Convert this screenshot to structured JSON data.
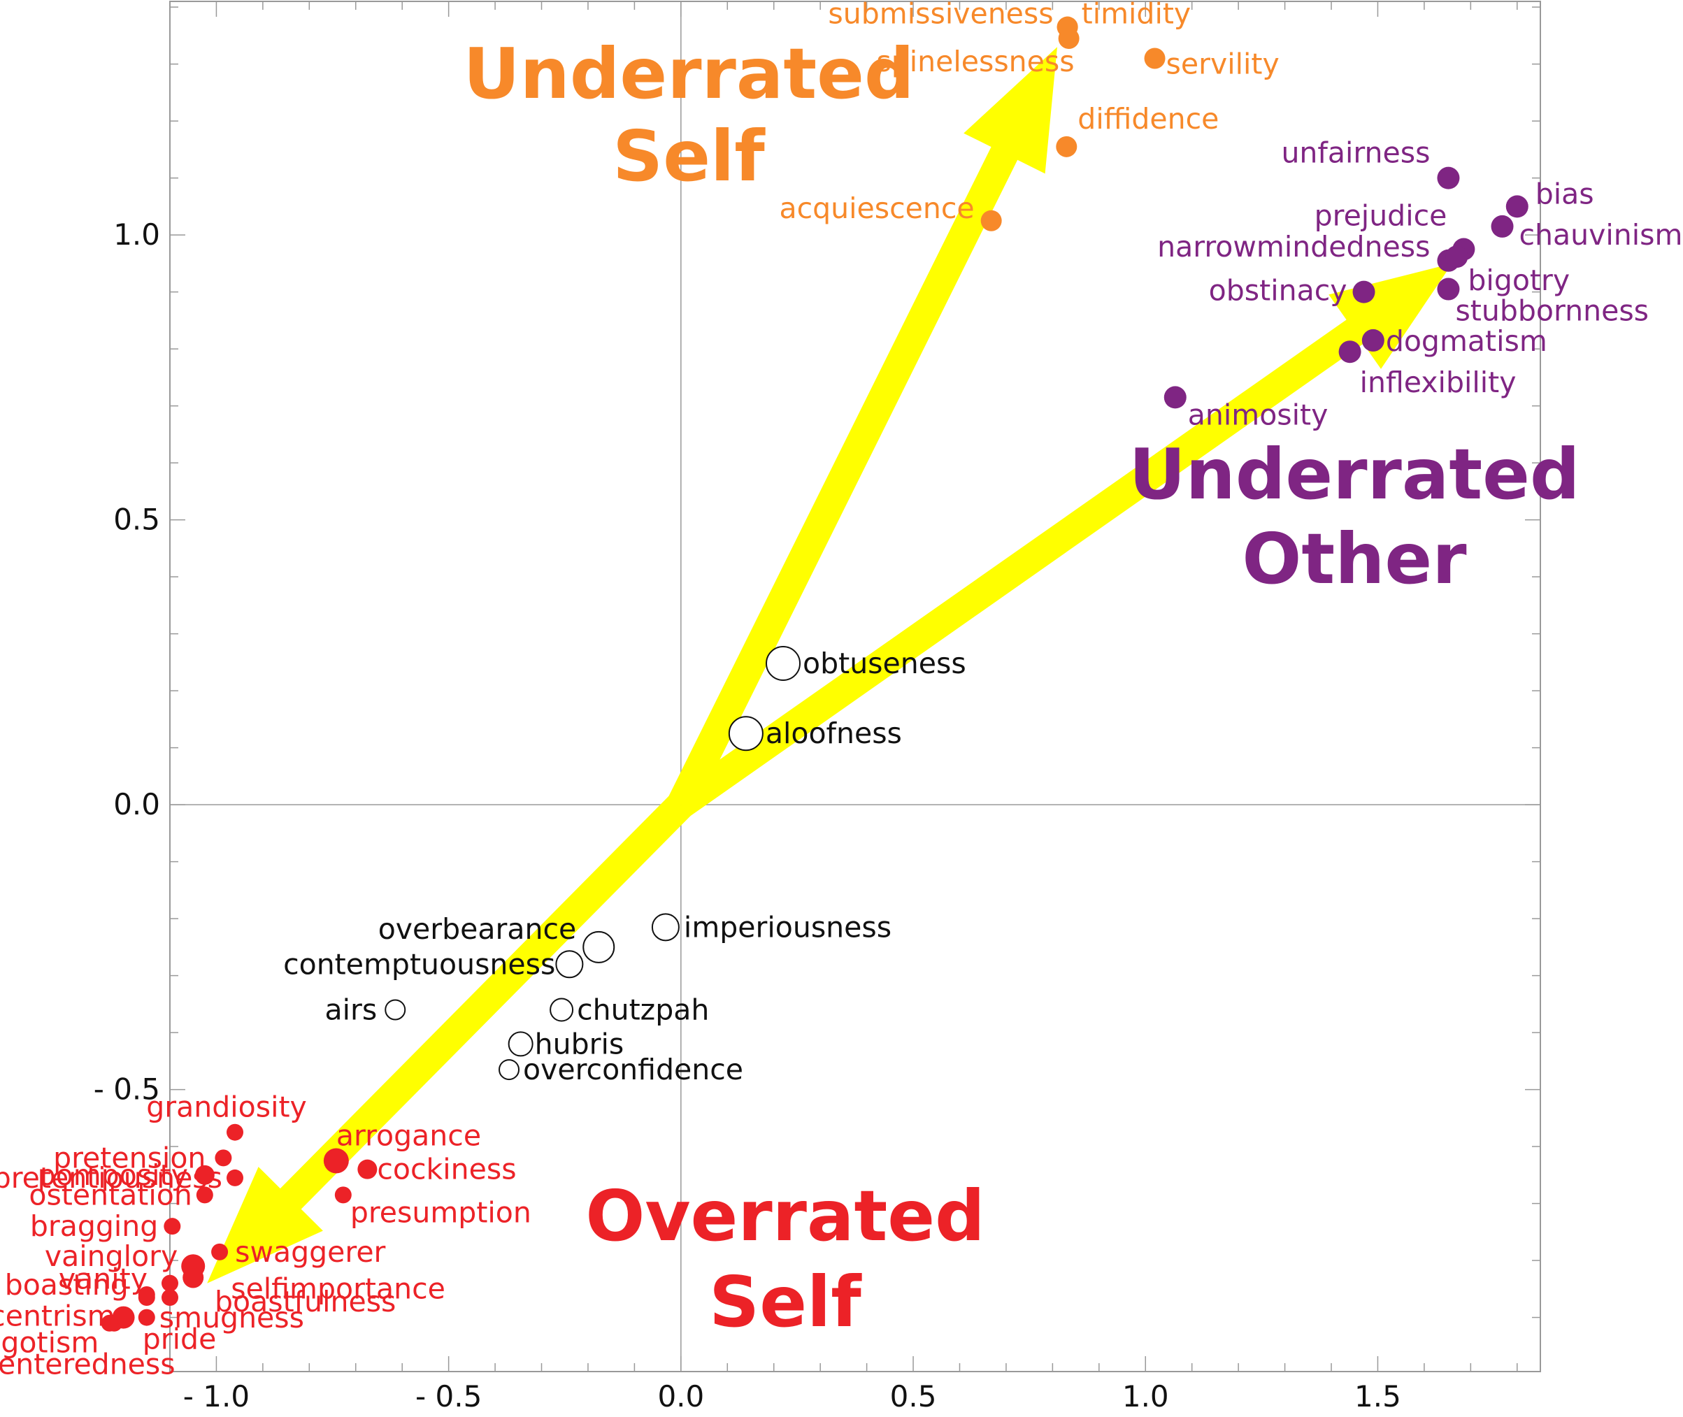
{
  "chart_data": {
    "type": "scatter",
    "title": "",
    "xlabel": "",
    "ylabel": "",
    "xlim": [
      -1.1,
      1.85
    ],
    "ylim": [
      -0.995,
      1.41
    ],
    "x_ticks": [
      {
        "value": -1.0,
        "label": "- 1.0"
      },
      {
        "value": -0.5,
        "label": "- 0.5"
      },
      {
        "value": 0.0,
        "label": "0.0"
      },
      {
        "value": 0.5,
        "label": "0.5"
      },
      {
        "value": 1.0,
        "label": "1.0"
      },
      {
        "value": 1.5,
        "label": "1.5"
      }
    ],
    "y_ticks": [
      {
        "value": -0.5,
        "label": "- 0.5"
      },
      {
        "value": 0.0,
        "label": "0.0"
      },
      {
        "value": 0.5,
        "label": "0.5"
      },
      {
        "value": 1.0,
        "label": "1.0"
      }
    ],
    "grid": false,
    "colors": {
      "underrated_self": "#f7892a",
      "underrated_other": "#7f2583",
      "overrated_self": "#ec2227",
      "neutral": "#111111",
      "arrow": "#ffff00"
    },
    "group_labels": {
      "underrated_self": [
        "Underrated",
        "Self"
      ],
      "underrated_other": [
        "Underrated",
        "Other"
      ],
      "overrated_self": [
        "Overrated",
        "Self"
      ]
    },
    "arrows": [
      {
        "from": [
          0.0,
          0.0
        ],
        "to": [
          0.81,
          1.33
        ]
      },
      {
        "from": [
          0.0,
          0.0
        ],
        "to": [
          1.66,
          0.95
        ]
      },
      {
        "from": [
          0.0,
          0.0
        ],
        "to": [
          -1.02,
          -0.84
        ]
      }
    ],
    "series": [
      {
        "group": "underrated_self",
        "points": [
          {
            "label": "submissiveness",
            "x": 0.832,
            "y": 1.365
          },
          {
            "label": "timidity",
            "x": 0.832,
            "y": 1.365
          },
          {
            "label": "spinelessness",
            "x": 0.835,
            "y": 1.345
          },
          {
            "label": "servility",
            "x": 1.02,
            "y": 1.31
          },
          {
            "label": "diffidence",
            "x": 0.83,
            "y": 1.155
          },
          {
            "label": "acquiescence",
            "x": 0.668,
            "y": 1.025
          }
        ]
      },
      {
        "group": "underrated_other",
        "points": [
          {
            "label": "unfairness",
            "x": 1.652,
            "y": 1.1
          },
          {
            "label": "bias",
            "x": 1.8,
            "y": 1.05
          },
          {
            "label": "chauvinism",
            "x": 1.768,
            "y": 1.015
          },
          {
            "label": "prejudice",
            "x": 1.685,
            "y": 0.975
          },
          {
            "label": "narrowmindedness",
            "x": 1.652,
            "y": 0.955
          },
          {
            "label": "bigotry",
            "x": 1.67,
            "y": 0.962
          },
          {
            "label": "obstinacy",
            "x": 1.47,
            "y": 0.9
          },
          {
            "label": "stubbornness",
            "x": 1.652,
            "y": 0.905
          },
          {
            "label": "dogmatism",
            "x": 1.49,
            "y": 0.815
          },
          {
            "label": "inflexibility",
            "x": 1.44,
            "y": 0.795
          },
          {
            "label": "animosity",
            "x": 1.064,
            "y": 0.715
          }
        ]
      },
      {
        "group": "neutral",
        "points": [
          {
            "label": "obtuseness",
            "x": 0.22,
            "y": 0.248
          },
          {
            "label": "aloofness",
            "x": 0.14,
            "y": 0.125
          },
          {
            "label": "imperiousness",
            "x": -0.033,
            "y": -0.215
          },
          {
            "label": "overbearance",
            "x": -0.177,
            "y": -0.25
          },
          {
            "label": "contemptuousness",
            "x": -0.24,
            "y": -0.28
          },
          {
            "label": "airs",
            "x": -0.615,
            "y": -0.36
          },
          {
            "label": "chutzpah",
            "x": -0.257,
            "y": -0.36
          },
          {
            "label": "hubris",
            "x": -0.345,
            "y": -0.42
          },
          {
            "label": "overconfidence",
            "x": -0.37,
            "y": -0.465
          }
        ]
      },
      {
        "group": "overrated_self",
        "points": [
          {
            "label": "grandiosity",
            "x": -0.96,
            "y": -0.575
          },
          {
            "label": "pretension",
            "x": -0.985,
            "y": -0.62
          },
          {
            "label": "pretentiousness",
            "x": -0.96,
            "y": -0.655
          },
          {
            "label": "pomposity",
            "x": -1.025,
            "y": -0.65
          },
          {
            "label": "ostentation",
            "x": -1.025,
            "y": -0.685
          },
          {
            "label": "arrogance",
            "x": -0.742,
            "y": -0.625
          },
          {
            "label": "cockiness",
            "x": -0.675,
            "y": -0.64
          },
          {
            "label": "presumption",
            "x": -0.727,
            "y": -0.685
          },
          {
            "label": "bragging",
            "x": -1.095,
            "y": -0.74
          },
          {
            "label": "swaggerer",
            "x": -0.993,
            "y": -0.785
          },
          {
            "label": "vainglory",
            "x": -1.05,
            "y": -0.81
          },
          {
            "label": "selfimportance",
            "x": -1.05,
            "y": -0.83
          },
          {
            "label": "vanity",
            "x": -1.1,
            "y": -0.84
          },
          {
            "label": "boastfulness",
            "x": -1.1,
            "y": -0.865
          },
          {
            "label": "boasting",
            "x": -1.15,
            "y": -0.86
          },
          {
            "label": "smugness",
            "x": -1.15,
            "y": -0.865
          },
          {
            "label": "egocentrism",
            "x": -1.2,
            "y": -0.9
          },
          {
            "label": "pride",
            "x": -1.15,
            "y": -0.9
          },
          {
            "label": "egotism",
            "x": -1.22,
            "y": -0.91
          },
          {
            "label": "selfcenteredness",
            "x": -1.23,
            "y": -0.91
          }
        ]
      }
    ]
  }
}
